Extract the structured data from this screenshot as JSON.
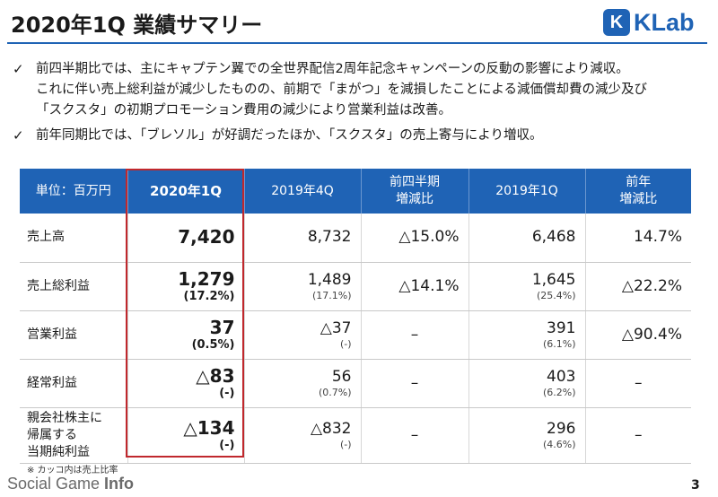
{
  "header": {
    "title": "2020年1Q 業績サマリー",
    "logo_mark": "K",
    "logo_text": "KLab"
  },
  "bullets": [
    {
      "lines": [
        "前四半期比では、主にキャプテン翼での全世界配信2周年記念キャンペーンの反動の影響により減収。",
        "これに伴い売上総利益が減少したものの、前期で「まがつ」を減損したことによる減価償却費の減少及び",
        "「スクスタ」の初期プロモーション費用の減少により営業利益は改善。"
      ]
    },
    {
      "lines": [
        "前年同期比では、「ブレソル」が好調だったほか、「スクスタ」の売上寄与により増収。"
      ]
    }
  ],
  "table": {
    "headers": {
      "unit": "単位：百万円",
      "q1_2020": "2020年1Q",
      "q4_2019": "2019年4Q",
      "qoq_line1": "前四半期",
      "qoq_line2": "増減比",
      "q1_2019": "2019年1Q",
      "yoy_line1": "前年",
      "yoy_line2": "増減比"
    },
    "rows": [
      {
        "label_lines": [
          "売上高"
        ],
        "q1_2020": "7,420",
        "q1_2020_sub": "",
        "q4_2019": "8,732",
        "q4_2019_sub": "",
        "qoq": "△15.0%",
        "q1_2019": "6,468",
        "q1_2019_sub": "",
        "yoy": "14.7%"
      },
      {
        "label_lines": [
          "売上総利益"
        ],
        "q1_2020": "1,279",
        "q1_2020_sub": "(17.2%)",
        "q4_2019": "1,489",
        "q4_2019_sub": "(17.1%)",
        "qoq": "△14.1%",
        "q1_2019": "1,645",
        "q1_2019_sub": "(25.4%)",
        "yoy": "△22.2%"
      },
      {
        "label_lines": [
          "営業利益"
        ],
        "q1_2020": "37",
        "q1_2020_sub": "(0.5%)",
        "q4_2019": "△37",
        "q4_2019_sub": "(-)",
        "qoq": "–",
        "q1_2019": "391",
        "q1_2019_sub": "(6.1%)",
        "yoy": "△90.4%"
      },
      {
        "label_lines": [
          "経常利益"
        ],
        "q1_2020": "△83",
        "q1_2020_sub": "(-)",
        "q4_2019": "56",
        "q4_2019_sub": "(0.7%)",
        "qoq": "–",
        "q1_2019": "403",
        "q1_2019_sub": "(6.2%)",
        "yoy": "–"
      },
      {
        "label_lines": [
          "親会社株主に",
          "帰属する",
          "当期純利益"
        ],
        "q1_2020": "△134",
        "q1_2020_sub": "(-)",
        "q4_2019": "△832",
        "q4_2019_sub": "(-)",
        "qoq": "–",
        "q1_2019": "296",
        "q1_2019_sub": "(4.6%)",
        "yoy": "–"
      }
    ]
  },
  "footnote": "※ カッコ内は売上比率",
  "watermark": {
    "prefix": "Social Game ",
    "bold": "Info"
  },
  "page_number": "3",
  "colors": {
    "brand_blue": "#1f63b5",
    "highlight_red": "#c0282d"
  },
  "icons": {
    "bullet": "check-mark-icon"
  }
}
